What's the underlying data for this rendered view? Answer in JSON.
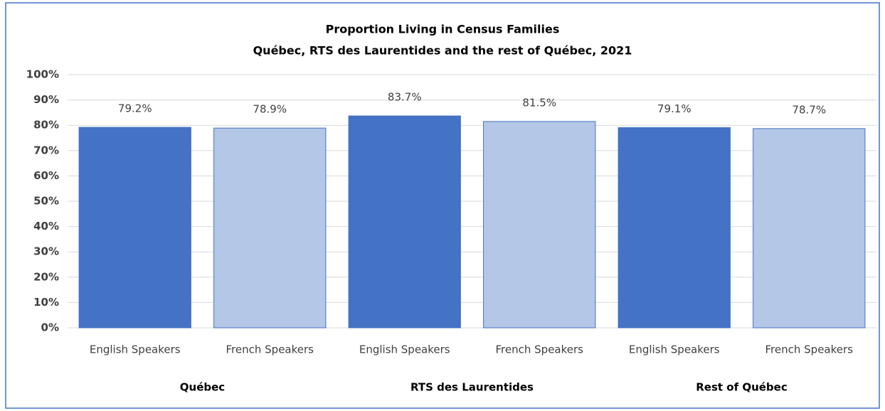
{
  "chart_data": {
    "type": "bar",
    "title": "Proportion Living in Census Families",
    "subtitle": "Québec, RTS des Laurentides and the rest of Québec, 2021",
    "categories": [
      "English Speakers",
      "French Speakers",
      "English Speakers",
      "French Speakers",
      "English Speakers",
      "French Speakers"
    ],
    "groups": [
      "Québec",
      "RTS des Laurentides",
      "Rest of Québec"
    ],
    "values": [
      79.2,
      78.9,
      83.7,
      81.5,
      79.1,
      78.7
    ],
    "value_labels": [
      "79.2%",
      "78.9%",
      "83.7%",
      "81.5%",
      "79.1%",
      "78.7%"
    ],
    "colors": [
      "#4472c4",
      "#b4c7e7",
      "#4472c4",
      "#b4c7e7",
      "#4472c4",
      "#b4c7e7"
    ],
    "ylim": [
      0,
      100
    ],
    "yticks": [
      {
        "value": 0,
        "label": "0%"
      },
      {
        "value": 10,
        "label": "10%"
      },
      {
        "value": 20,
        "label": "20%"
      },
      {
        "value": 30,
        "label": "30%"
      },
      {
        "value": 40,
        "label": "40%"
      },
      {
        "value": 50,
        "label": "50%"
      },
      {
        "value": 60,
        "label": "60%"
      },
      {
        "value": 70,
        "label": "70%"
      },
      {
        "value": 80,
        "label": "80%"
      },
      {
        "value": 90,
        "label": "90%"
      },
      {
        "value": 100,
        "label": "100%"
      }
    ],
    "grid": true
  }
}
